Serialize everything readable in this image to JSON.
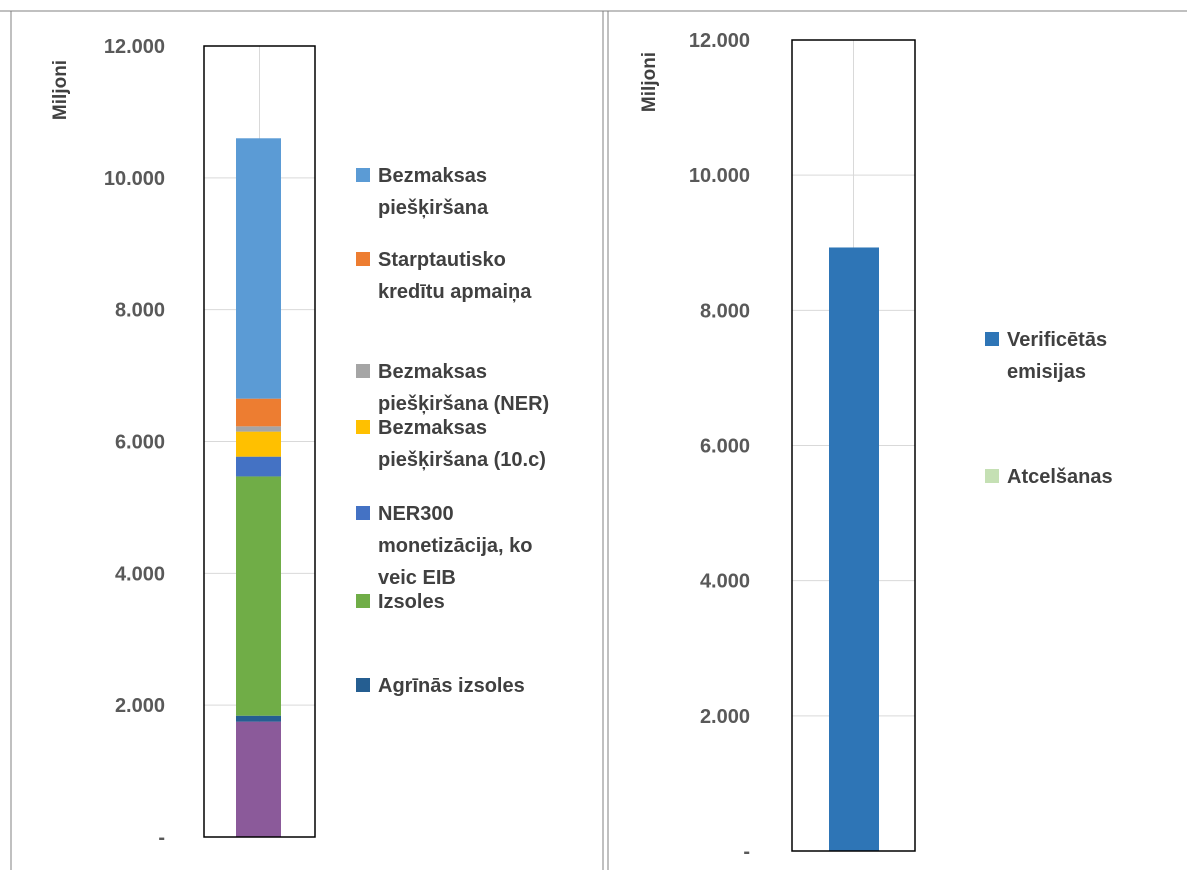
{
  "chart_data": [
    {
      "type": "bar",
      "stacked": true,
      "ylabel": "Miljoni",
      "ylim": [
        0,
        12000
      ],
      "yticks": [
        "-",
        "2.000",
        "4.000",
        "6.000",
        "8.000",
        "10.000",
        "12.000"
      ],
      "grid": true,
      "legend_position": "right",
      "series": [
        {
          "name": "",
          "value": 1750,
          "color": "#8B5A9A"
        },
        {
          "name": "Agrīnās izsoles",
          "value": 90,
          "color": "#255E91"
        },
        {
          "name": "Izsoles",
          "value": 3630,
          "color": "#70AD47"
        },
        {
          "name": "NER300 monetizācija, ko veic EIB",
          "value": 300,
          "color": "#4472C4"
        },
        {
          "name": "Bezmaksas piešķiršana (10.c)",
          "value": 380,
          "color": "#FFC000"
        },
        {
          "name": "Bezmaksas piešķiršana (NER)",
          "value": 80,
          "color": "#A5A5A5"
        },
        {
          "name": "Starptautisko kredītu apmaiņa",
          "value": 420,
          "color": "#ED7D31"
        },
        {
          "name": "Bezmaksas piešķiršana",
          "value": 3950,
          "color": "#5B9BD5"
        }
      ],
      "legend": [
        {
          "label_lines": [
            "Bezmaksas",
            "piešķiršana"
          ],
          "color": "#5B9BD5"
        },
        {
          "label_lines": [
            "Starptautisko",
            "kredītu apmaiņa"
          ],
          "color": "#ED7D31"
        },
        {
          "label_lines": [
            "Bezmaksas",
            "piešķiršana (NER)"
          ],
          "color": "#A5A5A5"
        },
        {
          "label_lines": [
            "Bezmaksas",
            "piešķiršana (10.c)"
          ],
          "color": "#FFC000"
        },
        {
          "label_lines": [
            "NER300",
            "monetizācija, ko",
            "veic EIB"
          ],
          "color": "#4472C4"
        },
        {
          "label_lines": [
            "Izsoles"
          ],
          "color": "#70AD47"
        },
        {
          "label_lines": [
            "Agrīnās izsoles"
          ],
          "color": "#255E91"
        }
      ]
    },
    {
      "type": "bar",
      "stacked": true,
      "ylabel": "Miljoni",
      "ylim": [
        0,
        12000
      ],
      "yticks": [
        "-",
        "2.000",
        "4.000",
        "6.000",
        "8.000",
        "10.000",
        "12.000"
      ],
      "grid": true,
      "legend_position": "right",
      "series": [
        {
          "name": "Verificētās emisijas",
          "value": 8930,
          "color": "#2E75B6"
        },
        {
          "name": "Atcelšanas",
          "value": 0,
          "color": "#C5E0B4"
        }
      ],
      "legend": [
        {
          "label_lines": [
            "Verificētās",
            "emisijas"
          ],
          "color": "#2E75B6"
        },
        {
          "label_lines": [
            "Atcelšanas"
          ],
          "color": "#C5E0B4"
        }
      ]
    }
  ]
}
